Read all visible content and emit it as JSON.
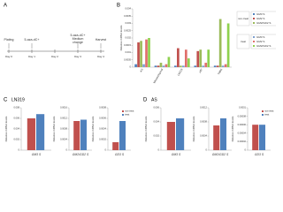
{
  "panel_a": {
    "label": "A",
    "days": [
      "Day 0",
      "Day 1",
      "Day 2",
      "Day 3",
      "Day 4"
    ],
    "events": [
      "Plating",
      "5-aza-dC+",
      "5-aza-dC+ Medium change",
      "Harvest"
    ]
  },
  "panel_b": {
    "label": "B"
  },
  "panel_c": {
    "label": "C",
    "title": "LN319"
  },
  "panel_d": {
    "label": "D",
    "title": "AS"
  },
  "chart_data": [
    {
      "type": "bar",
      "y_label": "Relative mRNA levels",
      "categories": [
        "AS",
        "Mesenchymal",
        "LN319",
        "u87",
        "T98G"
      ],
      "ylim": [
        0,
        0.004
      ],
      "yticks": [
        0,
        0.0005,
        0.001,
        0.0015,
        0.002,
        0.0025,
        0.003,
        0.0035,
        0.004
      ],
      "legend_groups": [
        "non-treat",
        "treat"
      ],
      "series": [
        {
          "name": "GM3 S",
          "color": "#4f81bd",
          "values": [
            0.0002,
            0.0001,
            0.0001,
            0.0001,
            0.0001
          ]
        },
        {
          "name": "GM2 S",
          "color": "#c0504d",
          "values": [
            0.0017,
            0.0001,
            0.0013,
            0.0011,
            0.0001
          ]
        },
        {
          "name": "GM2/GD2 S",
          "color": "#9bbb59",
          "values": [
            0.0018,
            0.0003,
            0.0001,
            0.0012,
            0.0033
          ]
        },
        {
          "name": "GM3 S",
          "color": "#7d9fd0",
          "values": [
            0.0002,
            0.0001,
            0.0001,
            0.0001,
            0.0001
          ]
        },
        {
          "name": "GM2 S",
          "color": "#e0706c",
          "values": [
            0.0019,
            0.0002,
            0.0012,
            0.0003,
            0.0002
          ]
        },
        {
          "name": "GM2/GD2 S",
          "color": "#8fd14f",
          "values": [
            0.002,
            0.0007,
            0.0006,
            0.0012,
            0.003
          ]
        }
      ]
    },
    {
      "type": "bar",
      "y_label": "Relative mRNA levels",
      "categories": [
        "GM3 S"
      ],
      "ylim": [
        0,
        0.008
      ],
      "yticks": [
        0,
        0.002,
        0.004,
        0.006,
        0.008
      ],
      "series": [
        {
          "color": "#c0504d",
          "values": [
            0.006
          ]
        },
        {
          "color": "#4f81bd",
          "values": [
            0.0068
          ]
        }
      ]
    },
    {
      "type": "bar",
      "y_label": "Relative mRNA levels",
      "categories": [
        "GM2/GD2 S"
      ],
      "ylim": [
        0,
        0.0016
      ],
      "yticks": [
        0,
        0.0004,
        0.0008,
        0.0012,
        0.0016
      ],
      "series": [
        {
          "color": "#c0504d",
          "values": [
            0.0011
          ]
        },
        {
          "color": "#4f81bd",
          "values": [
            0.00115
          ]
        }
      ]
    },
    {
      "type": "bar",
      "y_label": "Relative mRNA levels",
      "categories": [
        "GD3 S"
      ],
      "ylim": [
        0,
        0.0008
      ],
      "yticks": [
        0,
        0.0002,
        0.0004,
        0.0006,
        0.0008
      ],
      "series": [
        {
          "name": "non-treat",
          "color": "#c0504d",
          "values": [
            0.00015
          ]
        },
        {
          "name": "treat",
          "color": "#4f81bd",
          "values": [
            0.00055
          ]
        }
      ]
    },
    {
      "type": "bar",
      "y_label": "Relative mRNA levels",
      "categories": [
        "GM3 S"
      ],
      "ylim": [
        0,
        0.006
      ],
      "yticks": [
        0,
        0.002,
        0.004,
        0.006
      ],
      "series": [
        {
          "color": "#c0504d",
          "values": [
            0.004
          ]
        },
        {
          "color": "#4f81bd",
          "values": [
            0.0045
          ]
        }
      ]
    },
    {
      "type": "bar",
      "y_label": "Relative mRNA levels",
      "categories": [
        "GM2/GD2 S"
      ],
      "ylim": [
        0,
        0.0012
      ],
      "yticks": [
        0,
        0.0004,
        0.0008,
        0.0012
      ],
      "series": [
        {
          "color": "#c0504d",
          "values": [
            0.0007
          ]
        },
        {
          "color": "#4f81bd",
          "values": [
            0.0009
          ]
        }
      ]
    },
    {
      "type": "bar",
      "y_label": "Relative mRNA levels",
      "categories": [
        "GD3 S"
      ],
      "ylim": [
        0,
        0.0001
      ],
      "yticks": [
        0,
        2e-05,
        4e-05,
        6e-05,
        8e-05,
        0.0001
      ],
      "series": [
        {
          "name": "non-treat",
          "color": "#c0504d",
          "values": [
            6e-05
          ]
        },
        {
          "name": "treat",
          "color": "#4f81bd",
          "values": [
            6e-05
          ]
        }
      ]
    }
  ]
}
